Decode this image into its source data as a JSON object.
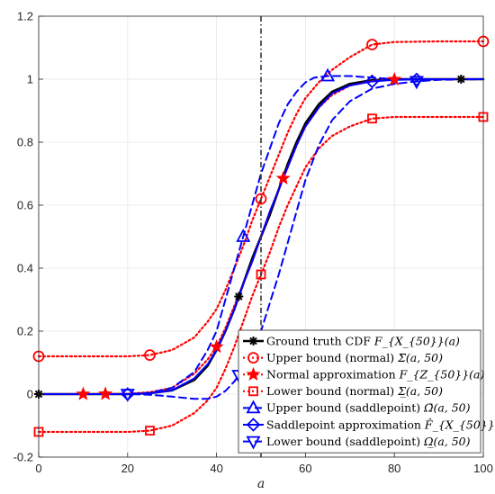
{
  "chart_data": {
    "type": "line",
    "xlabel": "a",
    "ylabel": "",
    "xlim": [
      0,
      100
    ],
    "ylim": [
      -0.2,
      1.2
    ],
    "x_ticks": [
      "0",
      "20",
      "40",
      "60",
      "80",
      "100"
    ],
    "y_ticks": [
      "-0.2",
      "0",
      "0.2",
      "0.4",
      "0.6",
      "0.8",
      "1",
      "1.2"
    ],
    "grid": true,
    "legend_position": "bottom-right",
    "vertical_line_x": 50,
    "series": [
      {
        "name": "Ground truth CDF",
        "math": "F_{X_{50}}(a)",
        "color": "#000000",
        "line": "solid",
        "marker": "asterisk",
        "points": [
          [
            0,
            0
          ],
          [
            10,
            0
          ],
          [
            20,
            0
          ],
          [
            25,
            0.003
          ],
          [
            30,
            0.012
          ],
          [
            35,
            0.045
          ],
          [
            38,
            0.09
          ],
          [
            40,
            0.14
          ],
          [
            42,
            0.2
          ],
          [
            44,
            0.27
          ],
          [
            46,
            0.35
          ],
          [
            48,
            0.43
          ],
          [
            50,
            0.5
          ],
          [
            52,
            0.57
          ],
          [
            54,
            0.65
          ],
          [
            56,
            0.73
          ],
          [
            58,
            0.8
          ],
          [
            60,
            0.86
          ],
          [
            63,
            0.92
          ],
          [
            66,
            0.96
          ],
          [
            70,
            0.985
          ],
          [
            75,
            0.997
          ],
          [
            80,
            1
          ],
          [
            90,
            1
          ],
          [
            100,
            1
          ]
        ],
        "markers_at": [
          0,
          45,
          95
        ]
      },
      {
        "name": "Upper bound (normal)",
        "math": "Σ̄(a, 50)",
        "color": "#ff0000",
        "line": "dotted",
        "marker": "circle",
        "points": [
          [
            0,
            0.12
          ],
          [
            10,
            0.12
          ],
          [
            20,
            0.12
          ],
          [
            25,
            0.124
          ],
          [
            30,
            0.14
          ],
          [
            35,
            0.18
          ],
          [
            38,
            0.23
          ],
          [
            40,
            0.27
          ],
          [
            42,
            0.33
          ],
          [
            44,
            0.4
          ],
          [
            46,
            0.47
          ],
          [
            48,
            0.55
          ],
          [
            50,
            0.62
          ],
          [
            52,
            0.69
          ],
          [
            54,
            0.76
          ],
          [
            56,
            0.83
          ],
          [
            58,
            0.89
          ],
          [
            60,
            0.94
          ],
          [
            63,
            0.99
          ],
          [
            66,
            1.03
          ],
          [
            70,
            1.07
          ],
          [
            75,
            1.11
          ],
          [
            80,
            1.118
          ],
          [
            90,
            1.12
          ],
          [
            100,
            1.12
          ]
        ],
        "markers_at": [
          0,
          25,
          50,
          75,
          100
        ]
      },
      {
        "name": "Normal approximation",
        "math": "F_{Z_{50}}(a)",
        "color": "#ff0000",
        "line": "dotted",
        "marker": "star",
        "points": [
          [
            0,
            0
          ],
          [
            10,
            0
          ],
          [
            20,
            0.001
          ],
          [
            25,
            0.006
          ],
          [
            30,
            0.02
          ],
          [
            35,
            0.065
          ],
          [
            38,
            0.11
          ],
          [
            40,
            0.15
          ],
          [
            42,
            0.21
          ],
          [
            44,
            0.28
          ],
          [
            46,
            0.35
          ],
          [
            48,
            0.42
          ],
          [
            50,
            0.5
          ],
          [
            52,
            0.58
          ],
          [
            54,
            0.65
          ],
          [
            56,
            0.72
          ],
          [
            58,
            0.79
          ],
          [
            60,
            0.85
          ],
          [
            63,
            0.91
          ],
          [
            66,
            0.95
          ],
          [
            70,
            0.98
          ],
          [
            75,
            0.994
          ],
          [
            80,
            0.999
          ],
          [
            90,
            1
          ],
          [
            100,
            1
          ]
        ],
        "markers_at": [
          10,
          15,
          40,
          55,
          80
        ]
      },
      {
        "name": "Lower bound (normal)",
        "math": "Σ̲(a, 50)",
        "color": "#ff0000",
        "line": "dotted",
        "marker": "square",
        "points": [
          [
            0,
            -0.12
          ],
          [
            10,
            -0.12
          ],
          [
            20,
            -0.12
          ],
          [
            25,
            -0.116
          ],
          [
            30,
            -0.1
          ],
          [
            35,
            -0.06
          ],
          [
            38,
            -0.02
          ],
          [
            40,
            0.02
          ],
          [
            42,
            0.08
          ],
          [
            44,
            0.15
          ],
          [
            46,
            0.23
          ],
          [
            48,
            0.31
          ],
          [
            50,
            0.38
          ],
          [
            52,
            0.45
          ],
          [
            54,
            0.53
          ],
          [
            56,
            0.6
          ],
          [
            58,
            0.66
          ],
          [
            60,
            0.72
          ],
          [
            63,
            0.78
          ],
          [
            66,
            0.82
          ],
          [
            70,
            0.85
          ],
          [
            75,
            0.875
          ],
          [
            80,
            0.88
          ],
          [
            90,
            0.88
          ],
          [
            100,
            0.88
          ]
        ],
        "markers_at": [
          0,
          25,
          50,
          75,
          100
        ]
      },
      {
        "name": "Upper bound (saddlepoint)",
        "math": "Ω̄(a, 50)",
        "color": "#0000ff",
        "line": "dashed",
        "marker": "triangle-up",
        "points": [
          [
            0,
            0
          ],
          [
            10,
            0
          ],
          [
            20,
            0
          ],
          [
            25,
            0.004
          ],
          [
            30,
            0.02
          ],
          [
            35,
            0.07
          ],
          [
            38,
            0.14
          ],
          [
            40,
            0.2
          ],
          [
            42,
            0.3
          ],
          [
            44,
            0.4
          ],
          [
            46,
            0.5
          ],
          [
            48,
            0.6
          ],
          [
            50,
            0.7
          ],
          [
            52,
            0.78
          ],
          [
            54,
            0.86
          ],
          [
            56,
            0.92
          ],
          [
            58,
            0.96
          ],
          [
            60,
            0.99
          ],
          [
            62,
            1.005
          ],
          [
            65,
            1.01
          ],
          [
            70,
            1.01
          ],
          [
            75,
            1.005
          ],
          [
            80,
            1
          ],
          [
            90,
            1
          ],
          [
            100,
            1
          ]
        ],
        "markers_at": [
          46,
          65
        ]
      },
      {
        "name": "Saddlepoint approximation",
        "math": "F̂_{X_{50}}(a)",
        "color": "#0000ff",
        "line": "solid",
        "marker": "diamond",
        "points": [
          [
            0,
            0
          ],
          [
            10,
            0
          ],
          [
            20,
            0
          ],
          [
            25,
            0.002
          ],
          [
            30,
            0.012
          ],
          [
            35,
            0.05
          ],
          [
            38,
            0.095
          ],
          [
            40,
            0.14
          ],
          [
            42,
            0.2
          ],
          [
            44,
            0.27
          ],
          [
            46,
            0.35
          ],
          [
            48,
            0.42
          ],
          [
            50,
            0.5
          ],
          [
            52,
            0.58
          ],
          [
            54,
            0.65
          ],
          [
            56,
            0.72
          ],
          [
            58,
            0.79
          ],
          [
            60,
            0.85
          ],
          [
            63,
            0.91
          ],
          [
            66,
            0.955
          ],
          [
            70,
            0.98
          ],
          [
            75,
            0.993
          ],
          [
            80,
            0.998
          ],
          [
            90,
            1
          ],
          [
            100,
            1
          ]
        ],
        "markers_at": [
          20,
          75,
          85
        ]
      },
      {
        "name": "Lower bound (saddlepoint)",
        "math": "Ω̲(a, 50)",
        "color": "#0000ff",
        "line": "dashed",
        "marker": "triangle-down",
        "points": [
          [
            0,
            0
          ],
          [
            10,
            0
          ],
          [
            20,
            0
          ],
          [
            25,
            -0.002
          ],
          [
            30,
            -0.008
          ],
          [
            35,
            -0.015
          ],
          [
            38,
            -0.015
          ],
          [
            40,
            -0.008
          ],
          [
            42,
            0.01
          ],
          [
            44,
            0.04
          ],
          [
            46,
            0.08
          ],
          [
            48,
            0.13
          ],
          [
            50,
            0.2
          ],
          [
            52,
            0.29
          ],
          [
            54,
            0.38
          ],
          [
            56,
            0.48
          ],
          [
            58,
            0.58
          ],
          [
            60,
            0.68
          ],
          [
            63,
            0.79
          ],
          [
            66,
            0.87
          ],
          [
            70,
            0.93
          ],
          [
            75,
            0.97
          ],
          [
            80,
            0.985
          ],
          [
            85,
            0.993
          ],
          [
            90,
            0.998
          ],
          [
            100,
            1
          ]
        ],
        "markers_at": [
          20,
          45,
          85
        ]
      }
    ]
  }
}
